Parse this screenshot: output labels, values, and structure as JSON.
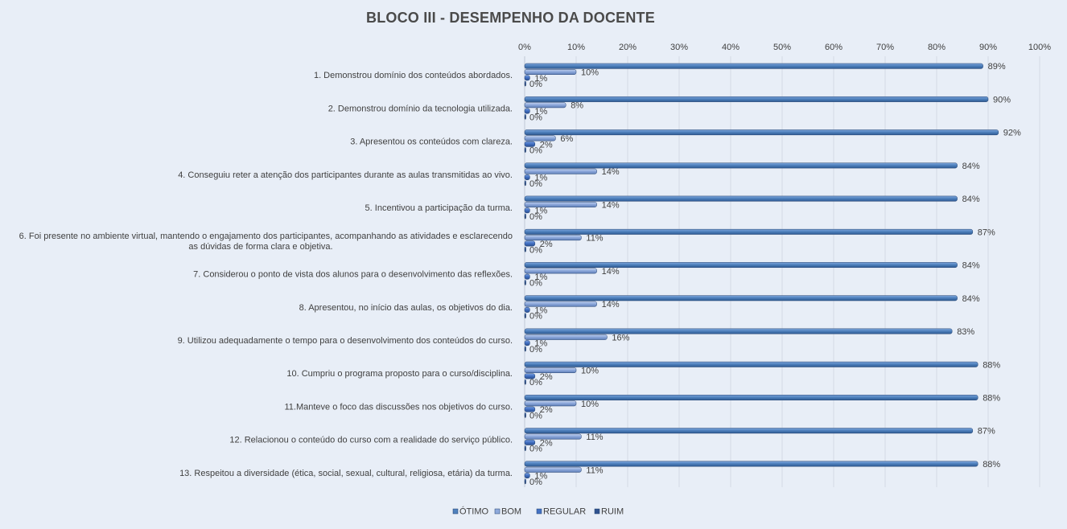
{
  "chart_data": {
    "type": "bar",
    "orientation": "horizontal",
    "title": "BLOCO III - DESEMPENHO  DA DOCENTE",
    "xlim": [
      0,
      100
    ],
    "x_ticks": [
      "0%",
      "10%",
      "20%",
      "30%",
      "40%",
      "50%",
      "60%",
      "70%",
      "80%",
      "90%",
      "100%"
    ],
    "grid": true,
    "legend_position": "bottom",
    "categories": [
      [
        "1. Demonstrou domínio dos conteúdos abordados."
      ],
      [
        "2. Demonstrou domínio da tecnologia utilizada."
      ],
      [
        "3. Apresentou os conteúdos com clareza."
      ],
      [
        "4. Conseguiu reter a atenção dos participantes durante as aulas transmitidas ao vivo."
      ],
      [
        "5. Incentivou  a participação da turma."
      ],
      [
        "6. Foi presente no ambiente virtual, mantendo o engajamento dos participantes, acompanhando as atividades e esclarecendo",
        "as dúvidas de forma clara e objetiva."
      ],
      [
        "7. Considerou o ponto de vista dos alunos para o desenvolvimento das reflexões."
      ],
      [
        "8. Apresentou, no início das aulas, os objetivos do dia."
      ],
      [
        "9. Utilizou adequadamente o tempo para o desenvolvimento dos conteúdos do curso."
      ],
      [
        "10. Cumpriu o programa proposto para o curso/disciplina."
      ],
      [
        "11.Manteve o foco das discussões nos objetivos do curso."
      ],
      [
        "12. Relacionou o conteúdo do curso com a realidade do serviço público."
      ],
      [
        "13. Respeitou a diversidade (ética, social, sexual, cultural, religiosa, etária) da turma."
      ]
    ],
    "series": [
      {
        "name": "ÓTIMO",
        "color": "#4f81bd",
        "values": [
          89,
          90,
          92,
          84,
          84,
          87,
          84,
          84,
          83,
          88,
          88,
          87,
          88
        ],
        "labels": [
          "89%",
          "90%",
          "92%",
          "84%",
          "84%",
          "87%",
          "84%",
          "84%",
          "83%",
          "88%",
          "88%",
          "87%",
          "88%"
        ]
      },
      {
        "name": "BOM",
        "color": "#8faadc",
        "values": [
          10,
          8,
          6,
          14,
          14,
          11,
          14,
          14,
          16,
          10,
          10,
          11,
          11
        ],
        "labels": [
          "10%",
          "8%",
          "6%",
          "14%",
          "14%",
          "11%",
          "14%",
          "14%",
          "16%",
          "10%",
          "10%",
          "11%",
          "11%"
        ]
      },
      {
        "name": "REGULAR",
        "color": "#4472c4",
        "values": [
          1,
          1,
          2,
          1,
          1,
          2,
          1,
          1,
          1,
          2,
          2,
          2,
          1
        ],
        "labels": [
          "1%",
          "1%",
          "2%",
          "1%",
          "1%",
          "2%",
          "1%",
          "1%",
          "1%",
          "2%",
          "2%",
          "2%",
          "1%"
        ]
      },
      {
        "name": "RUIM",
        "color": "#2f528f",
        "values": [
          0,
          0,
          0,
          0,
          0,
          0,
          0,
          0,
          0,
          0,
          0,
          0,
          0
        ],
        "labels": [
          "0%",
          "0%",
          "0%",
          "0%",
          "0%",
          "0%",
          "0%",
          "0%",
          "0%",
          "0%",
          "0%",
          "0%",
          "0%"
        ]
      }
    ]
  }
}
